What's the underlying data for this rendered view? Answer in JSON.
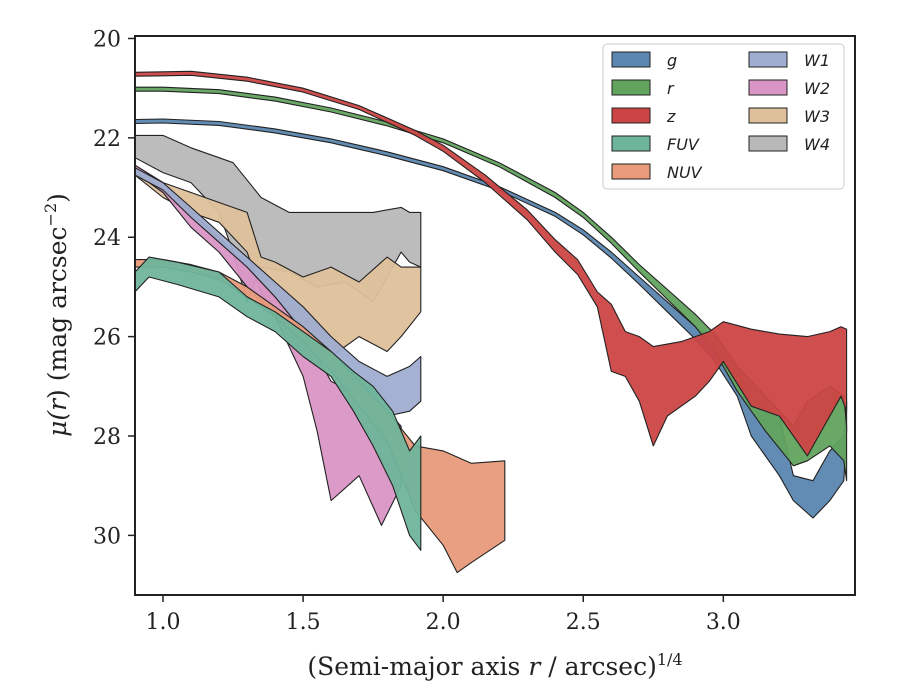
{
  "chart_data": {
    "type": "area",
    "xlabel_main": "(Semi-major axis ",
    "xlabel_var": "r",
    "xlabel_tail": " / arcsec)",
    "xlabel_sup": "1/4",
    "ylabel_mu": "μ(",
    "ylabel_var": "r",
    "ylabel_mid": ") (mag arcsec",
    "ylabel_sup": "−2",
    "ylabel_end": ")",
    "xlim": [
      0.9,
      3.47
    ],
    "ylim": [
      31.2,
      19.95
    ],
    "y_inverted": true,
    "xticks": [
      1.0,
      1.5,
      2.0,
      2.5,
      3.0
    ],
    "xtick_labels": [
      "1.0",
      "1.5",
      "2.0",
      "2.5",
      "3.0"
    ],
    "yticks": [
      20,
      22,
      24,
      26,
      28,
      30
    ],
    "ytick_labels": [
      "20",
      "22",
      "24",
      "26",
      "28",
      "30"
    ],
    "legend_position": "upper-right",
    "legend_columns": 2,
    "series": [
      {
        "name": "g",
        "color": "#5b86b0",
        "upper": [
          [
            0.9,
            21.63
          ],
          [
            1.0,
            21.62
          ],
          [
            1.2,
            21.67
          ],
          [
            1.4,
            21.82
          ],
          [
            1.6,
            22.02
          ],
          [
            1.8,
            22.28
          ],
          [
            2.0,
            22.58
          ],
          [
            2.2,
            22.98
          ],
          [
            2.4,
            23.5
          ],
          [
            2.5,
            23.85
          ],
          [
            2.6,
            24.3
          ],
          [
            2.7,
            24.8
          ],
          [
            2.8,
            25.3
          ],
          [
            2.9,
            25.8
          ],
          [
            2.97,
            26.1
          ],
          [
            3.05,
            26.6
          ],
          [
            3.1,
            27.2
          ],
          [
            3.2,
            27.6
          ],
          [
            3.25,
            28.8
          ],
          [
            3.32,
            28.9
          ],
          [
            3.38,
            28.3
          ],
          [
            3.43,
            28.0
          ],
          [
            3.44,
            27.3
          ]
        ],
        "lower": [
          [
            0.9,
            21.71
          ],
          [
            1.0,
            21.7
          ],
          [
            1.2,
            21.75
          ],
          [
            1.4,
            21.9
          ],
          [
            1.6,
            22.1
          ],
          [
            1.8,
            22.36
          ],
          [
            2.0,
            22.66
          ],
          [
            2.2,
            23.06
          ],
          [
            2.4,
            23.58
          ],
          [
            2.5,
            23.95
          ],
          [
            2.6,
            24.42
          ],
          [
            2.7,
            24.95
          ],
          [
            2.8,
            25.5
          ],
          [
            2.9,
            26.05
          ],
          [
            2.97,
            26.5
          ],
          [
            3.05,
            27.2
          ],
          [
            3.1,
            28.0
          ],
          [
            3.2,
            28.8
          ],
          [
            3.25,
            29.3
          ],
          [
            3.32,
            29.65
          ],
          [
            3.38,
            29.3
          ],
          [
            3.43,
            28.9
          ],
          [
            3.44,
            27.9
          ]
        ]
      },
      {
        "name": "r",
        "color": "#62a35e",
        "upper": [
          [
            0.9,
            20.98
          ],
          [
            1.0,
            20.98
          ],
          [
            1.2,
            21.03
          ],
          [
            1.4,
            21.18
          ],
          [
            1.6,
            21.4
          ],
          [
            1.8,
            21.68
          ],
          [
            2.0,
            22.02
          ],
          [
            2.2,
            22.5
          ],
          [
            2.4,
            23.1
          ],
          [
            2.5,
            23.5
          ],
          [
            2.6,
            24.0
          ],
          [
            2.7,
            24.55
          ],
          [
            2.8,
            25.05
          ],
          [
            2.9,
            25.55
          ],
          [
            2.97,
            25.95
          ],
          [
            3.05,
            26.6
          ],
          [
            3.15,
            27.2
          ],
          [
            3.25,
            27.8
          ],
          [
            3.3,
            27.3
          ],
          [
            3.38,
            27.0
          ],
          [
            3.43,
            27.2
          ],
          [
            3.44,
            27.8
          ]
        ],
        "lower": [
          [
            0.9,
            21.06
          ],
          [
            1.0,
            21.06
          ],
          [
            1.2,
            21.11
          ],
          [
            1.4,
            21.26
          ],
          [
            1.6,
            21.48
          ],
          [
            1.8,
            21.76
          ],
          [
            2.0,
            22.1
          ],
          [
            2.2,
            22.58
          ],
          [
            2.4,
            23.2
          ],
          [
            2.5,
            23.6
          ],
          [
            2.6,
            24.12
          ],
          [
            2.7,
            24.7
          ],
          [
            2.8,
            25.25
          ],
          [
            2.9,
            25.8
          ],
          [
            2.97,
            26.3
          ],
          [
            3.05,
            27.1
          ],
          [
            3.15,
            27.9
          ],
          [
            3.25,
            28.6
          ],
          [
            3.3,
            28.5
          ],
          [
            3.38,
            28.2
          ],
          [
            3.43,
            28.5
          ],
          [
            3.44,
            28.9
          ]
        ]
      },
      {
        "name": "z",
        "color": "#cc4444",
        "upper": [
          [
            0.9,
            20.68
          ],
          [
            1.0,
            20.67
          ],
          [
            1.1,
            20.66
          ],
          [
            1.3,
            20.78
          ],
          [
            1.5,
            21.0
          ],
          [
            1.7,
            21.35
          ],
          [
            1.9,
            21.85
          ],
          [
            2.0,
            22.15
          ],
          [
            2.15,
            22.75
          ],
          [
            2.3,
            23.45
          ],
          [
            2.4,
            24.05
          ],
          [
            2.48,
            24.45
          ],
          [
            2.55,
            25.1
          ],
          [
            2.6,
            25.35
          ],
          [
            2.65,
            25.9
          ],
          [
            2.7,
            26.0
          ],
          [
            2.75,
            26.2
          ],
          [
            2.85,
            26.1
          ],
          [
            2.95,
            25.9
          ],
          [
            3.0,
            25.7
          ],
          [
            3.1,
            25.85
          ],
          [
            3.2,
            25.95
          ],
          [
            3.3,
            26.0
          ],
          [
            3.38,
            25.9
          ],
          [
            3.42,
            25.8
          ],
          [
            3.44,
            25.85
          ]
        ],
        "lower": [
          [
            0.9,
            20.76
          ],
          [
            1.0,
            20.75
          ],
          [
            1.1,
            20.74
          ],
          [
            1.3,
            20.86
          ],
          [
            1.5,
            21.08
          ],
          [
            1.7,
            21.43
          ],
          [
            1.9,
            21.95
          ],
          [
            2.0,
            22.27
          ],
          [
            2.15,
            22.9
          ],
          [
            2.3,
            23.65
          ],
          [
            2.4,
            24.3
          ],
          [
            2.48,
            24.75
          ],
          [
            2.55,
            25.4
          ],
          [
            2.6,
            26.7
          ],
          [
            2.65,
            26.8
          ],
          [
            2.7,
            27.3
          ],
          [
            2.75,
            28.2
          ],
          [
            2.8,
            27.6
          ],
          [
            2.9,
            27.2
          ],
          [
            2.95,
            26.9
          ],
          [
            3.0,
            26.5
          ],
          [
            3.1,
            27.4
          ],
          [
            3.2,
            27.6
          ],
          [
            3.3,
            28.4
          ],
          [
            3.38,
            27.6
          ],
          [
            3.42,
            27.2
          ],
          [
            3.44,
            27.5
          ]
        ]
      },
      {
        "name": "FUV",
        "color": "#6fb59b",
        "upper": [
          [
            0.9,
            24.7
          ],
          [
            0.95,
            24.4
          ],
          [
            1.05,
            24.5
          ],
          [
            1.2,
            24.7
          ],
          [
            1.3,
            25.2
          ],
          [
            1.4,
            25.5
          ],
          [
            1.5,
            25.9
          ],
          [
            1.6,
            26.3
          ],
          [
            1.68,
            26.7
          ],
          [
            1.75,
            27.0
          ],
          [
            1.82,
            27.5
          ],
          [
            1.88,
            28.3
          ],
          [
            1.92,
            28.0
          ]
        ],
        "lower": [
          [
            0.9,
            25.1
          ],
          [
            0.95,
            24.8
          ],
          [
            1.05,
            24.95
          ],
          [
            1.2,
            25.2
          ],
          [
            1.3,
            25.6
          ],
          [
            1.4,
            25.9
          ],
          [
            1.5,
            26.4
          ],
          [
            1.6,
            26.8
          ],
          [
            1.68,
            27.5
          ],
          [
            1.75,
            28.2
          ],
          [
            1.82,
            29.0
          ],
          [
            1.88,
            30.0
          ],
          [
            1.92,
            30.3
          ]
        ]
      },
      {
        "name": "NUV",
        "color": "#e89a7a",
        "upper": [
          [
            0.9,
            24.45
          ],
          [
            1.0,
            24.45
          ],
          [
            1.1,
            24.55
          ],
          [
            1.2,
            24.7
          ],
          [
            1.3,
            25.0
          ],
          [
            1.4,
            25.4
          ],
          [
            1.5,
            25.8
          ],
          [
            1.6,
            26.3
          ],
          [
            1.7,
            26.9
          ],
          [
            1.8,
            27.5
          ],
          [
            1.9,
            28.2
          ],
          [
            2.0,
            28.3
          ],
          [
            2.1,
            28.55
          ],
          [
            2.22,
            28.5
          ]
        ],
        "lower": [
          [
            0.9,
            24.6
          ],
          [
            1.0,
            24.6
          ],
          [
            1.1,
            24.7
          ],
          [
            1.2,
            24.85
          ],
          [
            1.3,
            25.2
          ],
          [
            1.4,
            25.6
          ],
          [
            1.5,
            26.1
          ],
          [
            1.6,
            26.7
          ],
          [
            1.7,
            27.4
          ],
          [
            1.8,
            28.1
          ],
          [
            1.9,
            29.5
          ],
          [
            2.0,
            30.2
          ],
          [
            2.05,
            30.75
          ],
          [
            2.1,
            30.55
          ],
          [
            2.22,
            30.1
          ]
        ]
      },
      {
        "name": "W1",
        "color": "#9fadd0",
        "upper": [
          [
            0.9,
            22.6
          ],
          [
            1.0,
            22.9
          ],
          [
            1.1,
            23.4
          ],
          [
            1.2,
            23.9
          ],
          [
            1.3,
            24.4
          ],
          [
            1.4,
            24.9
          ],
          [
            1.5,
            25.4
          ],
          [
            1.6,
            26.0
          ],
          [
            1.7,
            26.5
          ],
          [
            1.8,
            26.8
          ],
          [
            1.88,
            26.6
          ],
          [
            1.92,
            26.4
          ]
        ],
        "lower": [
          [
            0.9,
            22.75
          ],
          [
            1.0,
            23.05
          ],
          [
            1.1,
            23.6
          ],
          [
            1.2,
            24.1
          ],
          [
            1.3,
            24.6
          ],
          [
            1.4,
            25.2
          ],
          [
            1.5,
            25.9
          ],
          [
            1.6,
            26.5
          ],
          [
            1.7,
            27.2
          ],
          [
            1.8,
            27.6
          ],
          [
            1.88,
            27.5
          ],
          [
            1.92,
            27.3
          ]
        ]
      },
      {
        "name": "W2",
        "color": "#d995c5",
        "upper": [
          [
            0.9,
            22.55
          ],
          [
            1.0,
            22.9
          ],
          [
            1.1,
            23.5
          ],
          [
            1.2,
            24.0
          ],
          [
            1.3,
            24.6
          ],
          [
            1.4,
            25.2
          ],
          [
            1.5,
            25.8
          ],
          [
            1.55,
            26.4
          ],
          [
            1.6,
            26.9
          ],
          [
            1.7,
            27.2
          ],
          [
            1.8,
            27.5
          ],
          [
            1.85,
            27.8
          ]
        ],
        "lower": [
          [
            0.9,
            22.7
          ],
          [
            1.0,
            23.1
          ],
          [
            1.1,
            23.8
          ],
          [
            1.2,
            24.3
          ],
          [
            1.3,
            25.0
          ],
          [
            1.4,
            25.6
          ],
          [
            1.5,
            26.8
          ],
          [
            1.55,
            27.9
          ],
          [
            1.6,
            29.3
          ],
          [
            1.7,
            28.8
          ],
          [
            1.78,
            29.8
          ],
          [
            1.85,
            29.0
          ]
        ]
      },
      {
        "name": "W3",
        "color": "#dec09a",
        "upper": [
          [
            0.9,
            22.55
          ],
          [
            1.0,
            22.9
          ],
          [
            1.1,
            23.1
          ],
          [
            1.2,
            23.3
          ],
          [
            1.3,
            23.5
          ],
          [
            1.35,
            24.4
          ],
          [
            1.4,
            24.5
          ],
          [
            1.5,
            24.8
          ],
          [
            1.6,
            24.6
          ],
          [
            1.7,
            24.9
          ],
          [
            1.8,
            24.4
          ],
          [
            1.85,
            24.6
          ],
          [
            1.92,
            24.6
          ]
        ],
        "lower": [
          [
            0.9,
            22.75
          ],
          [
            1.0,
            23.2
          ],
          [
            1.1,
            23.5
          ],
          [
            1.2,
            23.7
          ],
          [
            1.3,
            24.3
          ],
          [
            1.35,
            25.1
          ],
          [
            1.4,
            25.6
          ],
          [
            1.5,
            26.2
          ],
          [
            1.6,
            26.4
          ],
          [
            1.7,
            26.0
          ],
          [
            1.8,
            26.3
          ],
          [
            1.85,
            26.0
          ],
          [
            1.92,
            25.5
          ]
        ]
      },
      {
        "name": "W4",
        "color": "#b8b8b8",
        "upper": [
          [
            0.9,
            21.95
          ],
          [
            1.0,
            21.95
          ],
          [
            1.1,
            22.2
          ],
          [
            1.2,
            22.4
          ],
          [
            1.25,
            22.5
          ],
          [
            1.35,
            23.2
          ],
          [
            1.45,
            23.5
          ],
          [
            1.55,
            23.5
          ],
          [
            1.65,
            23.5
          ],
          [
            1.75,
            23.5
          ],
          [
            1.85,
            23.4
          ],
          [
            1.88,
            23.5
          ],
          [
            1.92,
            23.5
          ]
        ],
        "lower": [
          [
            0.9,
            22.4
          ],
          [
            1.0,
            22.7
          ],
          [
            1.1,
            22.9
          ],
          [
            1.2,
            23.5
          ],
          [
            1.25,
            24.3
          ],
          [
            1.3,
            25.3
          ],
          [
            1.35,
            24.6
          ],
          [
            1.45,
            24.7
          ],
          [
            1.55,
            25.0
          ],
          [
            1.65,
            24.9
          ],
          [
            1.75,
            25.3
          ],
          [
            1.85,
            24.3
          ],
          [
            1.88,
            24.5
          ],
          [
            1.92,
            24.6
          ]
        ]
      }
    ]
  }
}
